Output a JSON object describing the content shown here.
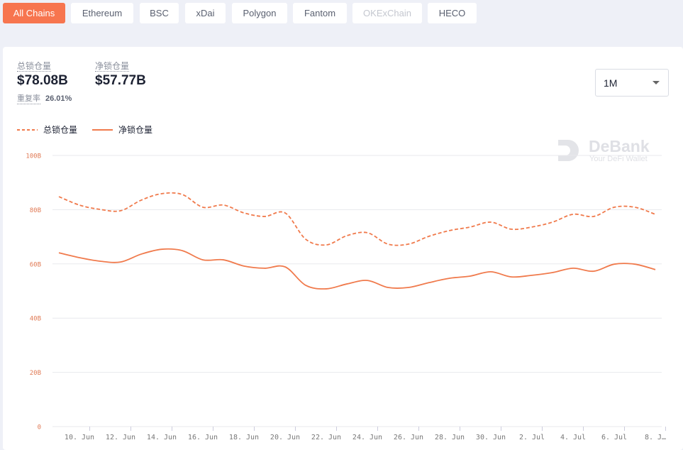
{
  "tabs": [
    {
      "label": "All Chains"
    },
    {
      "label": "Ethereum"
    },
    {
      "label": "BSC"
    },
    {
      "label": "xDai"
    },
    {
      "label": "Polygon"
    },
    {
      "label": "Fantom"
    },
    {
      "label": "OKExChain",
      "disabled": true
    },
    {
      "label": "HECO"
    }
  ],
  "active_tab": 0,
  "stats": [
    {
      "label": "总锁仓量",
      "value": "$78.08B"
    },
    {
      "label": "净锁仓量",
      "value": "$57.77B"
    }
  ],
  "overlap": {
    "label": "重复率",
    "value": "26.01%"
  },
  "range_select": "1M",
  "watermark": {
    "brand": "DeBank",
    "tagline": "Your DeFi Wallet"
  },
  "chart_data": {
    "type": "line",
    "categories": [
      null,
      "10. Jun",
      null,
      "12. Jun",
      null,
      "14. Jun",
      null,
      "16. Jun",
      null,
      "18. Jun",
      null,
      "20. Jun",
      null,
      "22. Jun",
      null,
      "24. Jun",
      null,
      "26. Jun",
      null,
      "28. Jun",
      null,
      "30. Jun",
      null,
      "2. Jul",
      null,
      "4. Jul",
      null,
      "6. Jul",
      null,
      "8. J…"
    ],
    "series": [
      {
        "name": "总锁仓量",
        "color": "#f07a4c",
        "dashed": true,
        "values": [
          84.8,
          81.7,
          80.1,
          79.6,
          83.5,
          85.9,
          85.6,
          80.9,
          81.7,
          78.8,
          77.5,
          78.8,
          69.1,
          67.0,
          70.4,
          71.5,
          67.3,
          67.3,
          70.2,
          72.3,
          73.6,
          75.4,
          72.8,
          73.6,
          75.4,
          78.3,
          77.5,
          80.9,
          80.9,
          78.3
        ]
      },
      {
        "name": "净锁仓量",
        "color": "#f07a4c",
        "dashed": false,
        "values": [
          64.1,
          62.3,
          61.0,
          60.7,
          63.6,
          65.4,
          64.9,
          61.5,
          61.5,
          59.2,
          58.4,
          58.9,
          52.1,
          50.8,
          52.6,
          53.9,
          51.3,
          51.3,
          53.1,
          54.7,
          55.5,
          57.1,
          55.2,
          55.8,
          56.8,
          58.4,
          57.3,
          59.9,
          59.9,
          57.9
        ]
      }
    ],
    "ylim": [
      0,
      100
    ],
    "yticks": [
      0,
      {
        "value": 20,
        "label": "20B"
      },
      {
        "value": 40,
        "label": "40B"
      },
      {
        "value": 60,
        "label": "60B"
      },
      {
        "value": 80,
        "label": "80B"
      },
      {
        "value": 100,
        "label": "100B"
      }
    ],
    "grid": true
  }
}
